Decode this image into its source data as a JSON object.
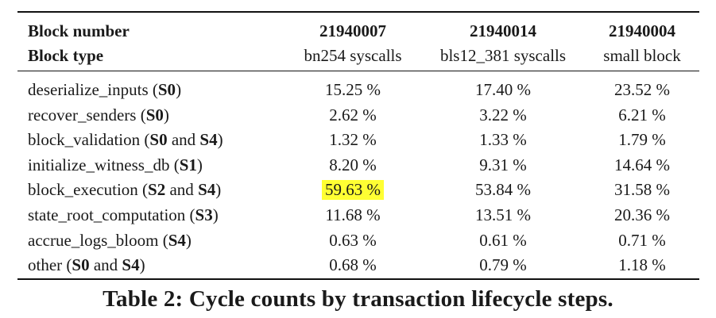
{
  "table": {
    "header_row1": {
      "label": "Block number",
      "columns": [
        "21940007",
        "21940014",
        "21940004"
      ]
    },
    "header_row2": {
      "label": "Block type",
      "columns": [
        "bn254 syscalls",
        "bls12_381 syscalls",
        "small block"
      ]
    },
    "rows": [
      {
        "name": "deserialize_inputs",
        "stages": [
          "S0"
        ],
        "values": [
          "15.25 %",
          "17.40 %",
          "23.52 %"
        ]
      },
      {
        "name": "recover_senders",
        "stages": [
          "S0"
        ],
        "values": [
          "2.62 %",
          "3.22 %",
          "6.21 %"
        ]
      },
      {
        "name": "block_validation",
        "stages": [
          "S0",
          "S4"
        ],
        "values": [
          "1.32 %",
          "1.33 %",
          "1.79 %"
        ]
      },
      {
        "name": "initialize_witness_db",
        "stages": [
          "S1"
        ],
        "values": [
          "8.20 %",
          "9.31 %",
          "14.64 %"
        ]
      },
      {
        "name": "block_execution",
        "stages": [
          "S2",
          "S4"
        ],
        "values": [
          "59.63 %",
          "53.84 %",
          "31.58 %"
        ]
      },
      {
        "name": "state_root_computation",
        "stages": [
          "S3"
        ],
        "values": [
          "11.68 %",
          "13.51 %",
          "20.36 %"
        ]
      },
      {
        "name": "accrue_logs_bloom",
        "stages": [
          "S4"
        ],
        "values": [
          "0.63 %",
          "0.61 %",
          "0.71 %"
        ]
      },
      {
        "name": "other",
        "stages": [
          "S0",
          "S4"
        ],
        "values": [
          "0.68 %",
          "0.79 %",
          "1.18 %"
        ]
      }
    ],
    "stage_joiner": "and",
    "highlight": {
      "row": 4,
      "col": 0,
      "color": "#ffff33"
    }
  },
  "caption": "Table 2: Cycle counts by transaction lifecycle steps."
}
